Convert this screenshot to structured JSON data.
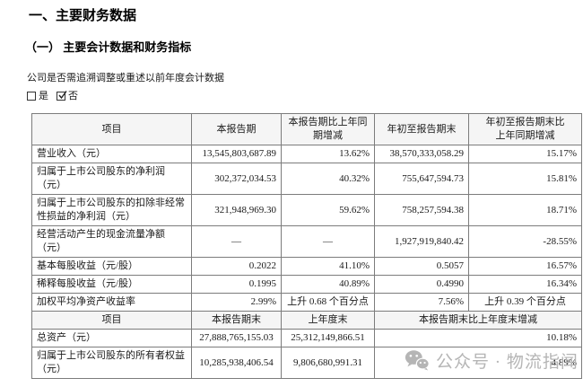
{
  "page": {
    "title": "一、主要财务数据",
    "subtitle": "（一） 主要会计数据和财务指标",
    "restate_question": "公司是否需追溯调整或重述以前年度会计数据",
    "checkbox_yes_label": "是",
    "checkbox_no_label": "否",
    "checkbox_yes_checked": false,
    "checkbox_no_checked": true
  },
  "table1": {
    "headers": [
      "项目",
      "本报告期",
      "本报告期比上年同\n期增减",
      "年初至报告期末",
      "年初至报告期末比\n上年同期增减"
    ],
    "rows": [
      [
        "营业收入（元）",
        "13,545,803,687.89",
        "13.62%",
        "38,570,333,058.29",
        "15.17%"
      ],
      [
        "归属于上市公司股东的净利润（元）",
        "302,372,034.53",
        "40.32%",
        "755,647,594.73",
        "15.81%"
      ],
      [
        "归属于上市公司股东的扣除非经常性损益的净利润（元）",
        "321,948,969.30",
        "59.62%",
        "758,257,594.38",
        "18.71%"
      ],
      [
        "经营活动产生的现金流量净额（元）",
        "—",
        "—",
        "1,927,919,840.42",
        "-28.55%"
      ],
      [
        "基本每股收益（元/股）",
        "0.2022",
        "41.10%",
        "0.5057",
        "16.57%"
      ],
      [
        "稀释每股收益（元/股）",
        "0.1995",
        "40.89%",
        "0.4990",
        "16.34%"
      ],
      [
        "加权平均净资产收益率",
        "2.99%",
        "上升 0.68 个百分点",
        "7.56%",
        "上升 0.39 个百分点"
      ]
    ]
  },
  "table2": {
    "headers": [
      "项目",
      "本报告期末",
      "上年度末",
      "本报告期末比上年度末增减"
    ],
    "rows": [
      [
        "总资产（元）",
        "27,888,765,155.03",
        "25,312,149,866.51",
        "10.18%"
      ],
      [
        "归属于上市公司股东的所有者权益（元）",
        "10,285,938,406.54",
        "9,806,680,991.31",
        "4.89%"
      ]
    ]
  },
  "watermark": {
    "icon": "wechat-icon",
    "text": "公众号 · 物流指闻"
  },
  "colors": {
    "text": "#1a1a1a",
    "table_border": "#7c7c7c",
    "header_fill": "#f5f5f5",
    "watermark_gray": "#b5b5b5"
  }
}
